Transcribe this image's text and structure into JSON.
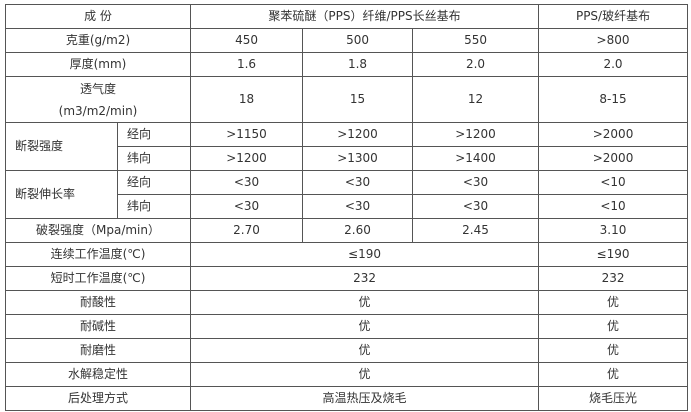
{
  "header": {
    "c0": "成 份",
    "c1": "聚苯硫醚（PPS）纤维/PPS长丝基布",
    "c2": "PPS/玻纤基布"
  },
  "rows": {
    "weight": {
      "label": "克重(g/m2)",
      "v": [
        "450",
        "500",
        "550",
        ">800"
      ]
    },
    "thickness": {
      "label": "厚度(mm)",
      "v": [
        "1.6",
        "1.8",
        "2.0",
        "2.0"
      ]
    },
    "permeability": {
      "label1": "透气度",
      "label2": "(m3/m2/min)",
      "v": [
        "18",
        "15",
        "12",
        "8-15"
      ]
    },
    "break_strength": {
      "label": "断裂强度",
      "warp": {
        "label": "经向",
        "v": [
          ">1150",
          ">1200",
          ">1200",
          ">2000"
        ]
      },
      "weft": {
        "label": "纬向",
        "v": [
          ">1200",
          ">1300",
          ">1400",
          ">2000"
        ]
      }
    },
    "elongation": {
      "label": "断裂伸长率",
      "warp": {
        "label": "经向",
        "v": [
          "<30",
          "<30",
          "<30",
          "<10"
        ]
      },
      "weft": {
        "label": "纬向",
        "v": [
          "<30",
          "<30",
          "<30",
          "<10"
        ]
      }
    },
    "burst": {
      "label": "破裂强度（Mpa/min）",
      "v": [
        "2.70",
        "2.60",
        "2.45",
        "3.10"
      ]
    },
    "cont_temp": {
      "label": "连续工作温度(℃)",
      "a": "≤190",
      "b": "≤190"
    },
    "short_temp": {
      "label": "短时工作温度(℃)",
      "a": "232",
      "b": "232"
    },
    "acid": {
      "label": "耐酸性",
      "a": "优",
      "b": "优"
    },
    "alkali": {
      "label": "耐碱性",
      "a": "优",
      "b": "优"
    },
    "abrasion": {
      "label": "耐磨性",
      "a": "优",
      "b": "优"
    },
    "hydrolysis": {
      "label": "水解稳定性",
      "a": "优",
      "b": "优"
    },
    "finish": {
      "label": "后处理方式",
      "a": "高温热压及烧毛",
      "b": "烧毛压光"
    }
  }
}
